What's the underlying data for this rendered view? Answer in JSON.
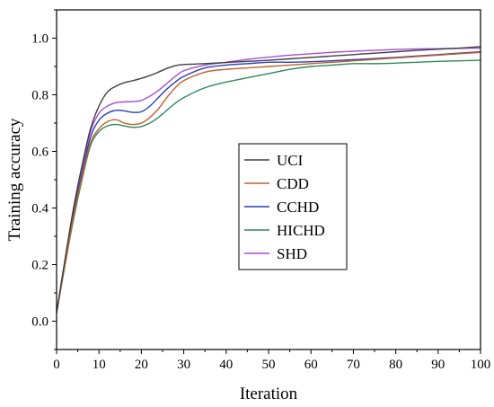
{
  "chart_data": {
    "type": "line",
    "title": "",
    "xlabel": "Iteration",
    "ylabel": "Training accuracy",
    "xlim": [
      0,
      100
    ],
    "ylim": [
      -0.1,
      1.1
    ],
    "x_ticks": [
      0,
      10,
      20,
      30,
      40,
      50,
      60,
      70,
      80,
      90,
      100
    ],
    "y_ticks": [
      0.0,
      0.2,
      0.4,
      0.6,
      0.8,
      1.0
    ],
    "x_tick_labels": [
      "0",
      "10",
      "20",
      "30",
      "40",
      "50",
      "60",
      "70",
      "80",
      "90",
      "100"
    ],
    "y_tick_labels": [
      "0.0",
      "0.2",
      "0.4",
      "0.6",
      "0.8",
      "1.0"
    ],
    "grid": false,
    "legend_position": "center",
    "x": [
      0,
      2,
      4,
      6,
      8,
      10,
      12,
      14,
      16,
      18,
      20,
      22,
      24,
      26,
      28,
      30,
      35,
      40,
      45,
      50,
      55,
      60,
      65,
      70,
      75,
      80,
      85,
      90,
      95,
      100
    ],
    "series": [
      {
        "name": "UCI",
        "color": "#404040",
        "values": [
          0.03,
          0.22,
          0.4,
          0.55,
          0.68,
          0.76,
          0.81,
          0.83,
          0.843,
          0.85,
          0.858,
          0.868,
          0.88,
          0.893,
          0.903,
          0.907,
          0.91,
          0.914,
          0.918,
          0.922,
          0.927,
          0.932,
          0.937,
          0.942,
          0.947,
          0.952,
          0.957,
          0.961,
          0.965,
          0.97
        ]
      },
      {
        "name": "CDD",
        "color": "#c0622c",
        "values": [
          0.03,
          0.2,
          0.37,
          0.51,
          0.63,
          0.68,
          0.705,
          0.712,
          0.7,
          0.695,
          0.7,
          0.72,
          0.75,
          0.79,
          0.825,
          0.85,
          0.88,
          0.89,
          0.895,
          0.9,
          0.905,
          0.91,
          0.915,
          0.92,
          0.925,
          0.93,
          0.935,
          0.94,
          0.945,
          0.95
        ]
      },
      {
        "name": "CCHD",
        "color": "#2a3fb5",
        "values": [
          0.03,
          0.21,
          0.38,
          0.52,
          0.65,
          0.71,
          0.735,
          0.745,
          0.743,
          0.738,
          0.74,
          0.76,
          0.79,
          0.82,
          0.845,
          0.865,
          0.895,
          0.905,
          0.91,
          0.915,
          0.915,
          0.917,
          0.92,
          0.924,
          0.928,
          0.932,
          0.937,
          0.942,
          0.947,
          0.952
        ]
      },
      {
        "name": "HICHD",
        "color": "#2e8a5a",
        "values": [
          0.03,
          0.2,
          0.36,
          0.5,
          0.62,
          0.67,
          0.69,
          0.695,
          0.69,
          0.685,
          0.688,
          0.7,
          0.72,
          0.745,
          0.77,
          0.79,
          0.825,
          0.845,
          0.86,
          0.875,
          0.89,
          0.9,
          0.905,
          0.91,
          0.91,
          0.912,
          0.915,
          0.918,
          0.92,
          0.922
        ]
      },
      {
        "name": "SHD",
        "color": "#a64fd6",
        "values": [
          0.03,
          0.21,
          0.39,
          0.54,
          0.67,
          0.735,
          0.76,
          0.772,
          0.775,
          0.776,
          0.78,
          0.795,
          0.815,
          0.84,
          0.865,
          0.885,
          0.905,
          0.915,
          0.925,
          0.933,
          0.94,
          0.945,
          0.95,
          0.954,
          0.957,
          0.96,
          0.962,
          0.963,
          0.964,
          0.965
        ]
      }
    ]
  }
}
